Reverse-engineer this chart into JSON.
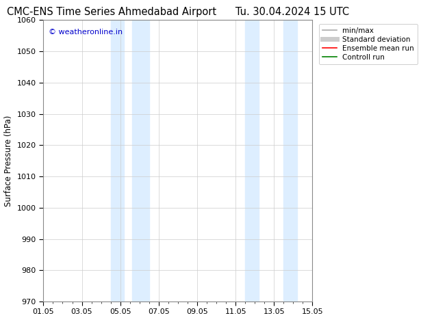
{
  "title_left": "CMC-ENS Time Series Ahmedabad Airport",
  "title_right": "Tu. 30.04.2024 15 UTC",
  "ylabel": "Surface Pressure (hPa)",
  "ylim": [
    970,
    1060
  ],
  "yticks": [
    970,
    980,
    990,
    1000,
    1010,
    1020,
    1030,
    1040,
    1050,
    1060
  ],
  "xlim": [
    0,
    14
  ],
  "xtick_labels": [
    "01.05",
    "03.05",
    "05.05",
    "07.05",
    "09.05",
    "11.05",
    "13.05",
    "15.05"
  ],
  "xtick_positions": [
    0,
    2,
    4,
    6,
    8,
    10,
    12,
    14
  ],
  "shaded_bands": [
    {
      "xmin": 3.5,
      "xmax": 4.2,
      "color": "#ddeeff"
    },
    {
      "xmin": 4.6,
      "xmax": 5.5,
      "color": "#ddeeff"
    },
    {
      "xmin": 10.5,
      "xmax": 11.2,
      "color": "#ddeeff"
    },
    {
      "xmin": 12.5,
      "xmax": 13.2,
      "color": "#ddeeff"
    }
  ],
  "watermark": "© weatheronline.in",
  "watermark_color": "#0000cc",
  "legend_items": [
    {
      "label": "min/max",
      "color": "#aaaaaa",
      "lw": 1.2,
      "style": "solid"
    },
    {
      "label": "Standard deviation",
      "color": "#cccccc",
      "lw": 5,
      "style": "solid"
    },
    {
      "label": "Ensemble mean run",
      "color": "#ff0000",
      "lw": 1.2,
      "style": "solid"
    },
    {
      "label": "Controll run",
      "color": "#008000",
      "lw": 1.2,
      "style": "solid"
    }
  ],
  "background_color": "#ffffff",
  "grid_color": "#cccccc",
  "title_fontsize": 10.5,
  "watermark_fontsize": 8,
  "axis_fontsize": 8.5,
  "tick_fontsize": 8
}
